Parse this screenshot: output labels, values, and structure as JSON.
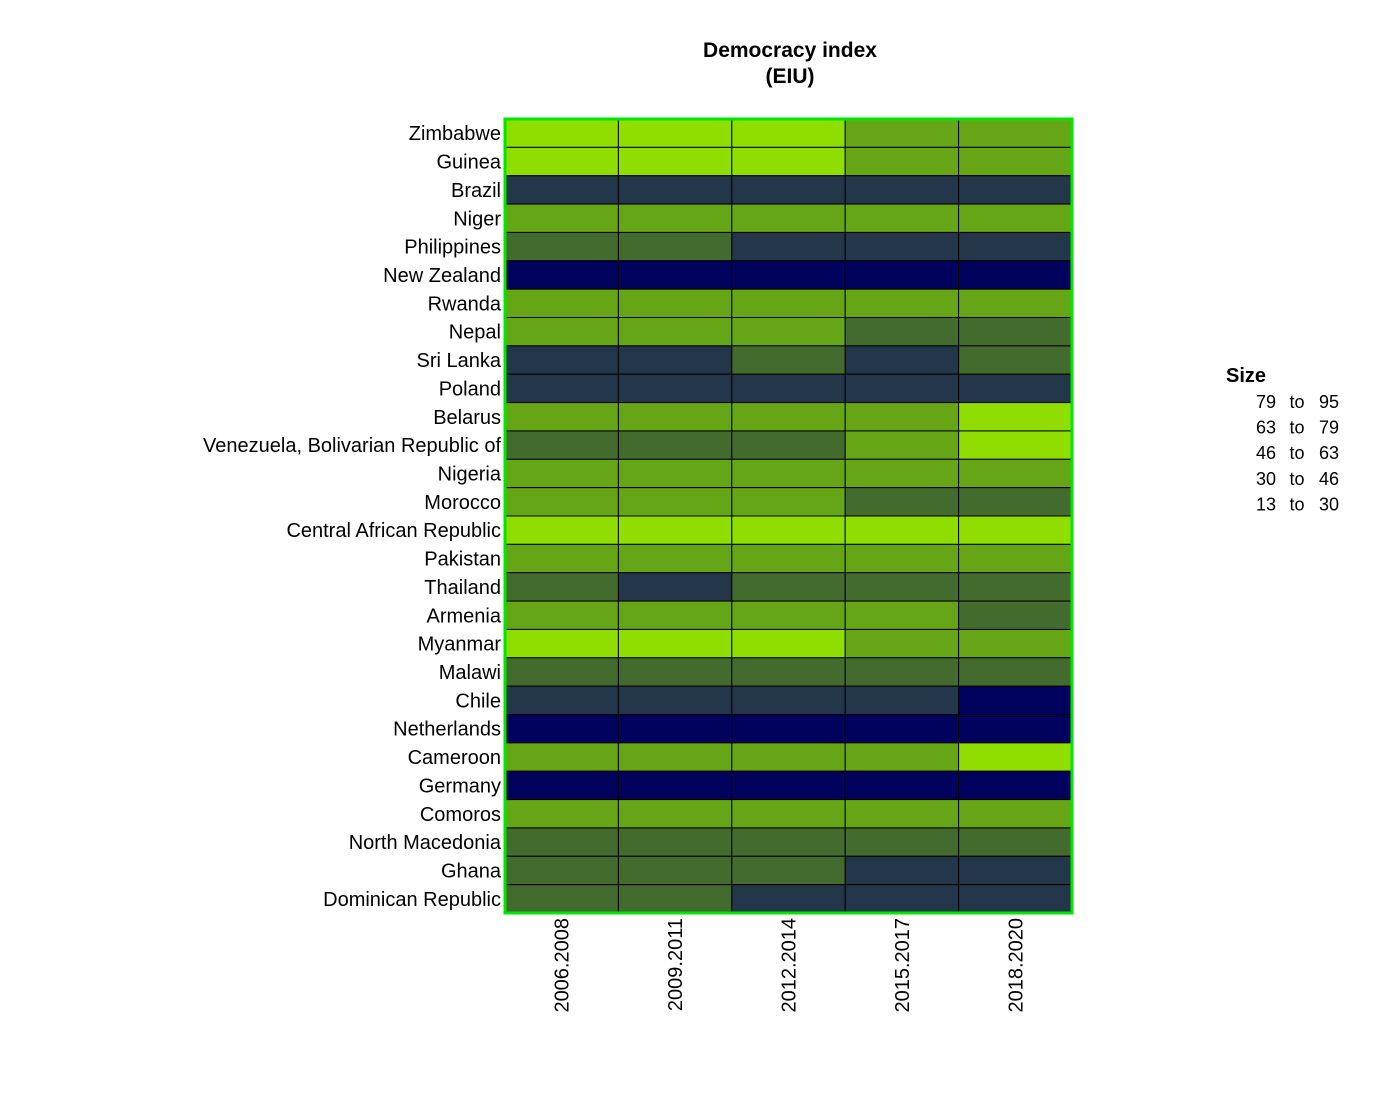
{
  "chart_data": {
    "type": "heatmap",
    "title": [
      "Democracy index",
      "(EIU)"
    ],
    "columns": [
      "2006.2008",
      "2009.2011",
      "2012.2014",
      "2015.2017",
      "2018.2020"
    ],
    "rows": [
      "Zimbabwe",
      "Guinea",
      "Brazil",
      "Niger",
      "Philippines",
      "New Zealand",
      "Rwanda",
      "Nepal",
      "Sri Lanka",
      "Poland",
      "Belarus",
      "Venezuela, Bolivarian Republic of",
      "Nigeria",
      "Morocco",
      "Central African Republic",
      "Pakistan",
      "Thailand",
      "Armenia",
      "Myanmar",
      "Malawi",
      "Chile",
      "Netherlands",
      "Cameroon",
      "Germany",
      "Comoros",
      "North Macedonia",
      "Ghana",
      "Dominican Republic"
    ],
    "class_values": [
      [
        4,
        4,
        4,
        3,
        3
      ],
      [
        4,
        4,
        4,
        3,
        3
      ],
      [
        1,
        1,
        1,
        1,
        1
      ],
      [
        3,
        3,
        3,
        3,
        3
      ],
      [
        2,
        2,
        1,
        1,
        1
      ],
      [
        0,
        0,
        0,
        0,
        0
      ],
      [
        3,
        3,
        3,
        3,
        3
      ],
      [
        3,
        3,
        3,
        2,
        2
      ],
      [
        1,
        1,
        2,
        1,
        2
      ],
      [
        1,
        1,
        1,
        1,
        1
      ],
      [
        3,
        3,
        3,
        3,
        4
      ],
      [
        2,
        2,
        2,
        3,
        4
      ],
      [
        3,
        3,
        3,
        3,
        3
      ],
      [
        3,
        3,
        3,
        2,
        2
      ],
      [
        4,
        4,
        4,
        4,
        4
      ],
      [
        3,
        3,
        3,
        3,
        3
      ],
      [
        2,
        1,
        2,
        2,
        2
      ],
      [
        3,
        3,
        3,
        3,
        2
      ],
      [
        4,
        4,
        4,
        3,
        3
      ],
      [
        2,
        2,
        2,
        2,
        2
      ],
      [
        1,
        1,
        1,
        1,
        0
      ],
      [
        0,
        0,
        0,
        0,
        0
      ],
      [
        3,
        3,
        3,
        3,
        4
      ],
      [
        0,
        0,
        0,
        0,
        0
      ],
      [
        3,
        3,
        3,
        3,
        3
      ],
      [
        2,
        2,
        2,
        2,
        2
      ],
      [
        2,
        2,
        2,
        1,
        1
      ],
      [
        2,
        2,
        1,
        1,
        1
      ]
    ],
    "legend": {
      "title": "Size",
      "placement": "right",
      "classes": [
        {
          "low": "79",
          "sep": "to",
          "high": "95",
          "color": "#01015e"
        },
        {
          "low": "63",
          "sep": "to",
          "high": "79",
          "color": "#23364a"
        },
        {
          "low": "46",
          "sep": "to",
          "high": "63",
          "color": "#436b2d"
        },
        {
          "low": "30",
          "sep": "to",
          "high": "46",
          "color": "#66a516"
        },
        {
          "low": "13",
          "sep": "to",
          "high": "30",
          "color": "#8fde00"
        }
      ]
    },
    "frame_color": "#00e600",
    "cell_border_color": "#000000"
  }
}
